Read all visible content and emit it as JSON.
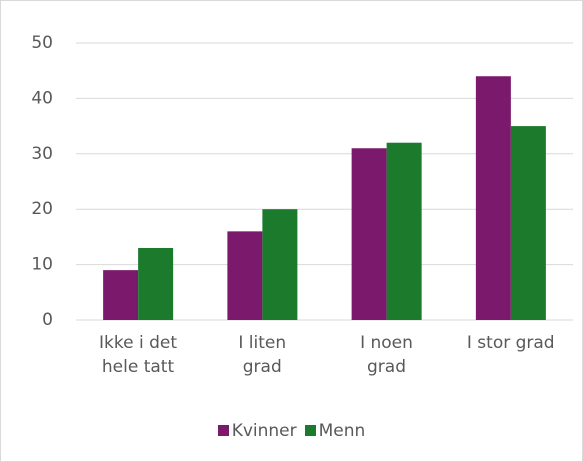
{
  "chart_data": {
    "type": "bar",
    "categories": [
      "Ikke i det\nhele tatt",
      "I liten\ngrad",
      "I noen\ngrad",
      "I stor grad"
    ],
    "series": [
      {
        "name": "Kvinner",
        "color": "#7b1a6c",
        "values": [
          9,
          16,
          31,
          44
        ]
      },
      {
        "name": "Menn",
        "color": "#1b7a2c",
        "values": [
          13,
          20,
          32,
          35
        ]
      }
    ],
    "ylim": [
      0,
      50
    ],
    "yticks": [
      0,
      10,
      20,
      30,
      40,
      50
    ],
    "grid": true,
    "legend": "bottom"
  }
}
